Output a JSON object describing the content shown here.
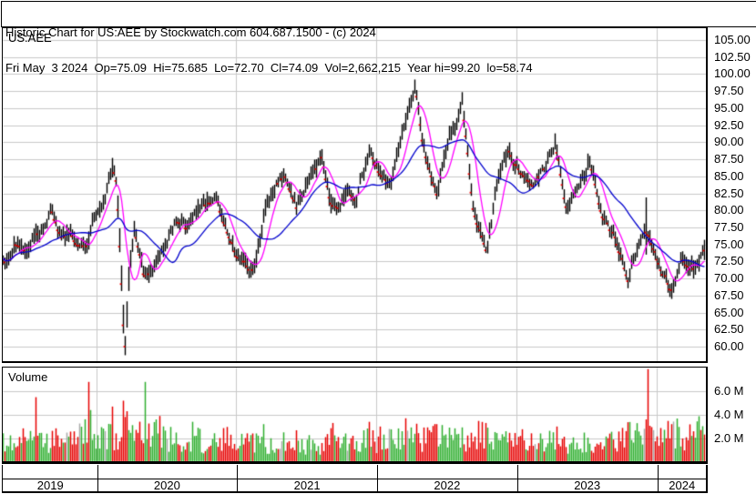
{
  "header": {
    "title_line": "Historic Chart for US:AEE by Stockwatch.com 604.687.1500 - (c) 2024",
    "quote_line": "Fri May  3 2024  Op=75.09  Hi=75.685  Lo=72.70  Cl=74.09  Vol=2,662,215  Year hi=99.20  lo=58.74"
  },
  "price_panel": {
    "symbol": "US:AEE"
  },
  "volume_panel": {
    "label": "Volume"
  },
  "colors": {
    "background": "#ffffff",
    "frame": "#000000",
    "grid": "#c9c9c9",
    "price_bar": "#000000",
    "close_tick": "#ff0000",
    "ma_fast": "#ff00ff",
    "ma_slow": "#0000cd",
    "volume_up": "#2fae2f",
    "volume_down": "#e60000",
    "volume_neutral": "#aaaaaa"
  },
  "chart_data": [
    {
      "type": "candlestick",
      "title": "US:AEE daily price",
      "x_start": "2019-05",
      "x_end": "2024-05",
      "years": [
        "2019",
        "2020",
        "2021",
        "2022",
        "2023",
        "2024"
      ],
      "ylim": [
        57.5,
        106.9
      ],
      "grid": true,
      "yticks": [
        {
          "v": 105.0,
          "label": "105.00"
        },
        {
          "v": 102.5,
          "label": "102.50"
        },
        {
          "v": 100.0,
          "label": "100.00"
        },
        {
          "v": 97.5,
          "label": "97.50"
        },
        {
          "v": 95.0,
          "label": "95.00"
        },
        {
          "v": 92.5,
          "label": "92.50"
        },
        {
          "v": 90.0,
          "label": "90.00"
        },
        {
          "v": 87.5,
          "label": "87.50"
        },
        {
          "v": 85.0,
          "label": "85.00"
        },
        {
          "v": 82.5,
          "label": "82.50"
        },
        {
          "v": 80.0,
          "label": "80.00"
        },
        {
          "v": 77.5,
          "label": "77.50"
        },
        {
          "v": 75.0,
          "label": "75.00"
        },
        {
          "v": 72.5,
          "label": "72.50"
        },
        {
          "v": 70.0,
          "label": "70.00"
        },
        {
          "v": 67.5,
          "label": "67.50"
        },
        {
          "v": 65.0,
          "label": "65.00"
        },
        {
          "v": 62.5,
          "label": "62.50"
        },
        {
          "v": 60.0,
          "label": "60.00"
        }
      ],
      "series": [
        {
          "name": "daily-price-bars"
        },
        {
          "name": "fast-moving-average",
          "window_bars": 9
        },
        {
          "name": "slow-moving-average",
          "window_bars": 30
        }
      ],
      "anchors": [
        [
          0,
          73.5
        ],
        [
          0.5,
          72.2
        ],
        [
          1,
          75.0
        ],
        [
          2,
          74.2
        ],
        [
          3,
          76.6
        ],
        [
          4.3,
          79.9
        ],
        [
          5,
          76.2
        ],
        [
          5.8,
          77.0
        ],
        [
          6.5,
          75.5
        ],
        [
          7.3,
          74.8
        ],
        [
          8,
          79.5
        ],
        [
          8.8,
          82.5
        ],
        [
          9.4,
          87.3
        ],
        [
          9.8,
          84.0
        ],
        [
          10.5,
          59.3
        ],
        [
          10.8,
          70.0
        ],
        [
          11.3,
          77.5
        ],
        [
          11.8,
          73.0
        ],
        [
          12.2,
          69.9
        ],
        [
          13,
          71.5
        ],
        [
          14,
          75.2
        ],
        [
          15,
          78.8
        ],
        [
          15.7,
          77.5
        ],
        [
          16.4,
          79.5
        ],
        [
          17.2,
          80.8
        ],
        [
          18.3,
          82.2
        ],
        [
          19,
          78.0
        ],
        [
          20,
          73.8
        ],
        [
          21.5,
          70.6
        ],
        [
          22.5,
          80.2
        ],
        [
          23.5,
          84.2
        ],
        [
          24.3,
          85.2
        ],
        [
          25.2,
          80.4
        ],
        [
          26.2,
          84.2
        ],
        [
          27.4,
          87.8
        ],
        [
          28.2,
          81.0
        ],
        [
          28.8,
          80.2
        ],
        [
          29.5,
          83.2
        ],
        [
          30.3,
          82.0
        ],
        [
          31.5,
          88.8
        ],
        [
          32.3,
          85.5
        ],
        [
          33.3,
          83.5
        ],
        [
          34.5,
          92.8
        ],
        [
          35.4,
          98.0
        ],
        [
          36,
          90.0
        ],
        [
          36.4,
          87.0
        ],
        [
          37.2,
          82.4
        ],
        [
          38.3,
          90.3
        ],
        [
          39.4,
          95.8
        ],
        [
          40.3,
          81.0
        ],
        [
          41.5,
          74.2
        ],
        [
          42.5,
          85.2
        ],
        [
          43.4,
          88.6
        ],
        [
          44.2,
          86.0
        ],
        [
          45.4,
          83.8
        ],
        [
          46.4,
          86.0
        ],
        [
          47.4,
          90.3
        ],
        [
          48.3,
          80.9
        ],
        [
          49.2,
          82.2
        ],
        [
          50.3,
          87.5
        ],
        [
          51.3,
          80.3
        ],
        [
          52.4,
          76.2
        ],
        [
          53.6,
          70.3
        ],
        [
          54.5,
          74.5
        ],
        [
          55.1,
          77.5
        ],
        [
          55.6,
          75.5
        ],
        [
          56.3,
          72.5
        ],
        [
          57.3,
          68.0
        ],
        [
          58.2,
          73.2
        ],
        [
          58.9,
          71.4
        ],
        [
          59.5,
          72.0
        ],
        [
          60.15,
          74.3
        ]
      ],
      "events": [
        {
          "t": 4.3,
          "high": 80.9
        },
        {
          "t": 9.4,
          "high": 87.7
        },
        {
          "t": 10.5,
          "low": 58.74
        },
        {
          "t": 31.5,
          "high": 89.7
        },
        {
          "t": 35.4,
          "high": 99.2
        },
        {
          "t": 39.4,
          "high": 96.7
        },
        {
          "t": 47.4,
          "high": 91.3
        },
        {
          "t": 50.3,
          "high": 88.0
        },
        {
          "t": 55.1,
          "high": 81.9,
          "low": 73.5
        },
        {
          "t": 57.3,
          "low": 67.0
        },
        {
          "t": 60.15,
          "high": 75.685,
          "low": 72.7,
          "close": 74.09
        }
      ]
    },
    {
      "type": "bar",
      "title": "Volume",
      "ylim": [
        0,
        8.2
      ],
      "grid": true,
      "yticks": [
        {
          "v": 6.0,
          "label": "6.0 M"
        },
        {
          "v": 4.0,
          "label": "4.0 M"
        },
        {
          "v": 2.0,
          "label": "2.0 M"
        }
      ],
      "anchors": [
        [
          0,
          2.2
        ],
        [
          1,
          1.8
        ],
        [
          2,
          1.7
        ],
        [
          3,
          2.0
        ],
        [
          4,
          1.8
        ],
        [
          5,
          1.7
        ],
        [
          6,
          1.6
        ],
        [
          7,
          2.2
        ],
        [
          8,
          2.0
        ],
        [
          9,
          2.2
        ],
        [
          10.5,
          3.0
        ],
        [
          11,
          2.5
        ],
        [
          12,
          2.1
        ],
        [
          13,
          2.4
        ],
        [
          14,
          1.9
        ],
        [
          15,
          1.7
        ],
        [
          16,
          1.9
        ],
        [
          17,
          1.8
        ],
        [
          18,
          1.9
        ],
        [
          19,
          2.0
        ],
        [
          20,
          1.9
        ],
        [
          21,
          1.8
        ],
        [
          22,
          1.9
        ],
        [
          23,
          1.7
        ],
        [
          24,
          1.6
        ],
        [
          25,
          1.6
        ],
        [
          26,
          1.6
        ],
        [
          27,
          1.5
        ],
        [
          28,
          1.8
        ],
        [
          29,
          1.6
        ],
        [
          30,
          1.7
        ],
        [
          31,
          1.9
        ],
        [
          32,
          1.9
        ],
        [
          33,
          1.8
        ],
        [
          34,
          2.1
        ],
        [
          35,
          1.9
        ],
        [
          36,
          2.0
        ],
        [
          37,
          2.1
        ],
        [
          38,
          1.8
        ],
        [
          39,
          1.7
        ],
        [
          40,
          2.0
        ],
        [
          41,
          2.1
        ],
        [
          42,
          1.9
        ],
        [
          43,
          1.8
        ],
        [
          44,
          1.7
        ],
        [
          45,
          1.7
        ],
        [
          46,
          1.8
        ],
        [
          47,
          1.7
        ],
        [
          48,
          1.8
        ],
        [
          49,
          1.6
        ],
        [
          50,
          1.5
        ],
        [
          51,
          1.6
        ],
        [
          52,
          1.7
        ],
        [
          53,
          2.0
        ],
        [
          54,
          2.4
        ],
        [
          55,
          2.1
        ],
        [
          56,
          2.0
        ],
        [
          57,
          2.3
        ],
        [
          58,
          2.2
        ],
        [
          59,
          2.1
        ],
        [
          60,
          2.5
        ]
      ],
      "spikes": [
        [
          2.85,
          5.5,
          "down"
        ],
        [
          7.35,
          6.8,
          "down"
        ],
        [
          7.55,
          4.4,
          "up"
        ],
        [
          9.5,
          4.7,
          "down"
        ],
        [
          10.4,
          5.2,
          "down"
        ],
        [
          10.7,
          4.3,
          "down"
        ],
        [
          12.2,
          6.8,
          "up"
        ],
        [
          13.2,
          3.6,
          "up"
        ],
        [
          13.5,
          3.9,
          "down"
        ],
        [
          16.3,
          3.4,
          "up"
        ],
        [
          22.4,
          3.2,
          "up"
        ],
        [
          28.3,
          3.3,
          "down"
        ],
        [
          31.4,
          3.4,
          "down"
        ],
        [
          34.6,
          3.7,
          "down"
        ],
        [
          37.3,
          3.2,
          "down"
        ],
        [
          41.4,
          3.3,
          "down"
        ],
        [
          47.5,
          3.0,
          "down"
        ],
        [
          55.2,
          3.6,
          "down"
        ],
        [
          55.35,
          7.9,
          "down"
        ],
        [
          57.4,
          3.2,
          "down"
        ],
        [
          59.9,
          2.7,
          "down"
        ]
      ]
    }
  ]
}
